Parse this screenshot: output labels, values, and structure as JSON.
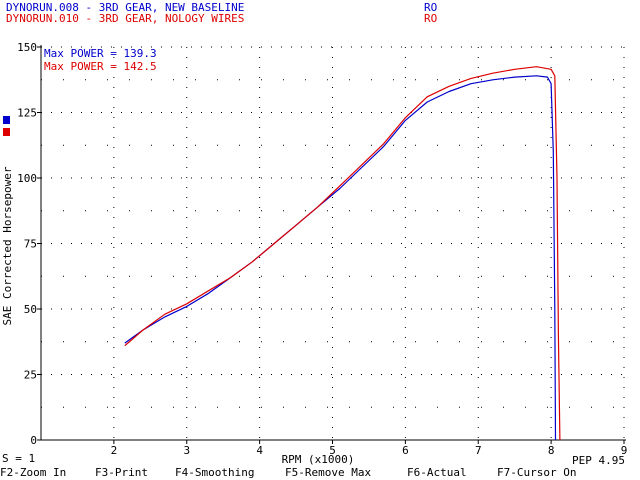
{
  "header": {
    "runs": [
      {
        "label": "DYNORUN.008 - 3RD GEAR, NEW BASELINE",
        "code": "RO",
        "color": "#0000cc"
      },
      {
        "label": "DYNORUN.010 - 3RD GEAR, NOLOGY WIRES",
        "code": "RO",
        "color": "#dd0000"
      }
    ]
  },
  "annotations": {
    "max_power_1": "Max POWER = 139.3",
    "max_power_2": "Max POWER = 142.5"
  },
  "status": {
    "smoothing": "S = 1",
    "pep": "PEP 4.95"
  },
  "function_keys": [
    {
      "label": "F2-Zoom In"
    },
    {
      "label": "F3-Print"
    },
    {
      "label": "F4-Smoothing"
    },
    {
      "label": "F5-Remove Max"
    },
    {
      "label": "F6-Actual"
    },
    {
      "label": "F7-Cursor On"
    }
  ],
  "chart_data": {
    "type": "line",
    "xlabel": "RPM (x1000)",
    "ylabel": "SAE Corrected Horsepower",
    "xlim": [
      1,
      9
    ],
    "ylim": [
      0,
      150
    ],
    "x_ticks": [
      "2",
      "3",
      "4",
      "5",
      "6",
      "7",
      "8",
      "9"
    ],
    "y_ticks": [
      "0",
      "25",
      "50",
      "75",
      "100",
      "125",
      "150"
    ],
    "grid": "dotted",
    "series": [
      {
        "color": "#0000cc",
        "x": [
          2.15,
          2.4,
          2.7,
          3.0,
          3.3,
          3.6,
          3.9,
          4.2,
          4.5,
          4.8,
          5.1,
          5.4,
          5.7,
          6.0,
          6.3,
          6.6,
          6.9,
          7.2,
          7.5,
          7.8,
          7.95,
          8.0,
          8.03,
          8.05,
          8.06
        ],
        "y": [
          37,
          42,
          47,
          51,
          56,
          62,
          68,
          75,
          82,
          89,
          96,
          104,
          112,
          122,
          129,
          133,
          136,
          137.5,
          138.5,
          139,
          138.5,
          136,
          110,
          50,
          0
        ]
      },
      {
        "color": "#dd0000",
        "x": [
          2.15,
          2.4,
          2.7,
          3.0,
          3.3,
          3.6,
          3.9,
          4.2,
          4.5,
          4.8,
          5.1,
          5.4,
          5.7,
          6.0,
          6.3,
          6.6,
          6.9,
          7.2,
          7.5,
          7.8,
          8.0,
          8.05,
          8.08,
          8.1,
          8.12
        ],
        "y": [
          36,
          42,
          48,
          52,
          57,
          62,
          68,
          75,
          82,
          89,
          97,
          105,
          113,
          123,
          131,
          135,
          138,
          140,
          141.5,
          142.5,
          141.5,
          139,
          100,
          40,
          0
        ]
      }
    ]
  }
}
